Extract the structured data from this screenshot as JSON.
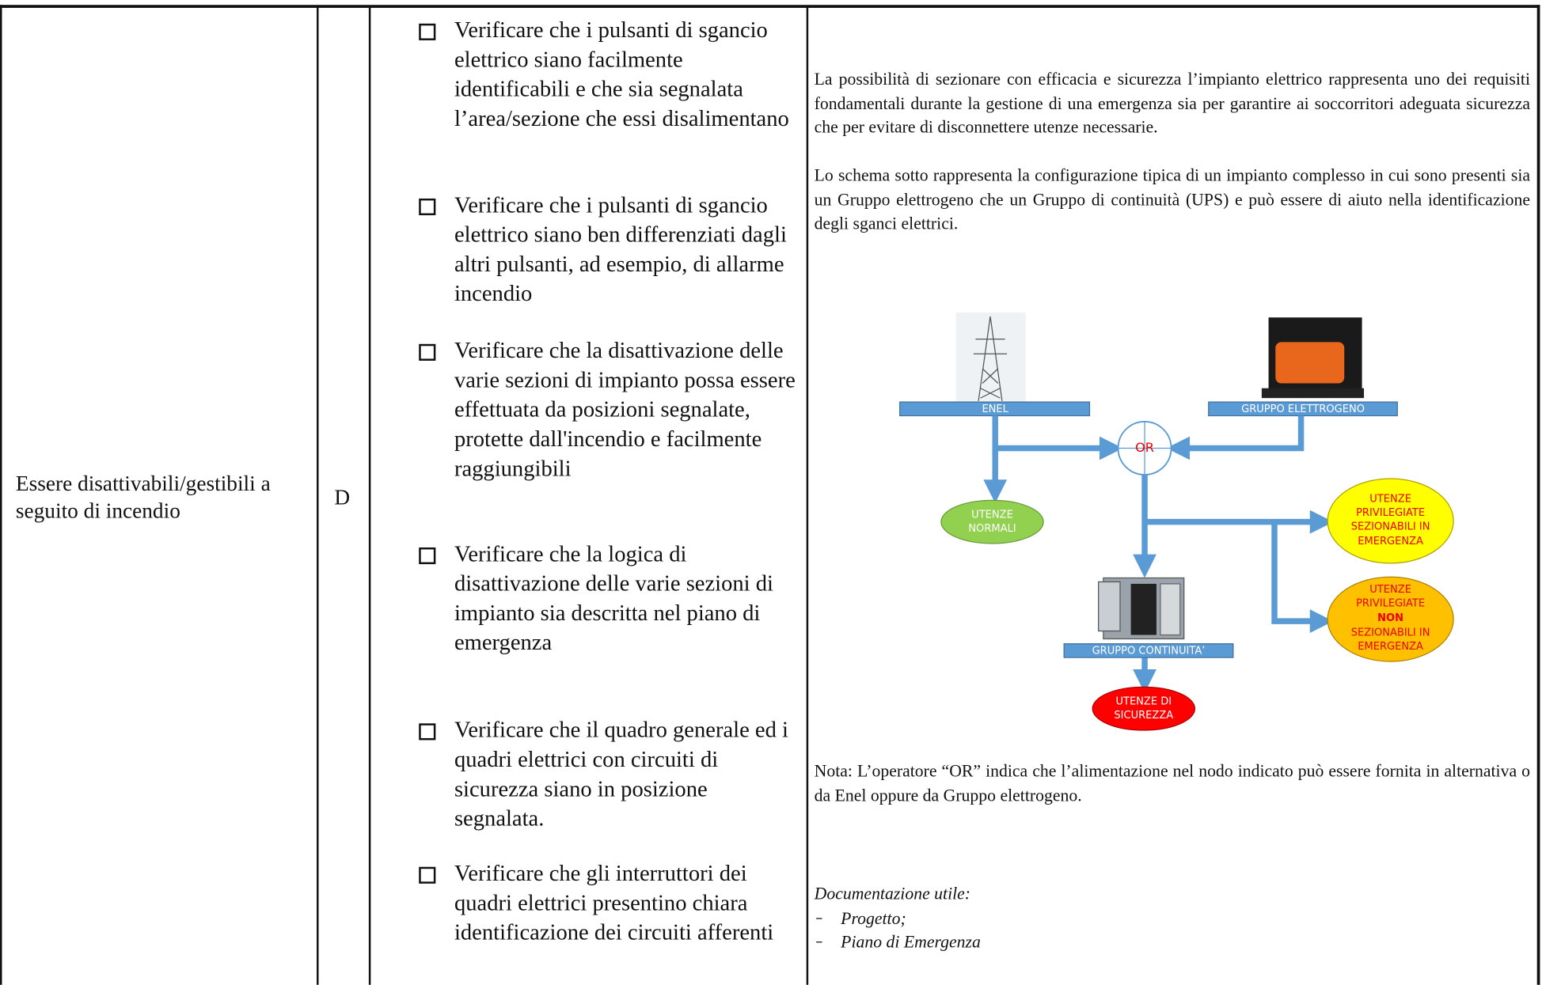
{
  "row": {
    "requirement": "Essere disattivabili/gestibili a seguito di incendio",
    "code": "D",
    "checks": [
      "Verificare che i pulsanti di sgancio elettrico siano facilmente identificabili e che sia segnalata l’area/sezione che essi disalimentano",
      "Verificare che i pulsanti di sgancio elettrico siano ben differenziati dagli altri pulsanti, ad esempio, di allarme incendio",
      "Verificare che la disattivazione delle varie sezioni di impianto possa essere effettuata da posizioni segnalate, protette dall'incendio e facilmente raggiungibili",
      "Verificare che la logica di disattivazione delle varie sezioni di impianto sia descritta nel piano di emergenza",
      "Verificare che il quadro generale ed i quadri elettrici con circuiti di sicurezza siano in posizione segnalata.",
      "Verificare che gli interruttori dei quadri elettrici presentino chiara identificazione dei circuiti afferenti"
    ],
    "notes": {
      "paragraphs": [
        "La possibilità di sezionare con efficacia e sicurezza l’impianto elettrico rappresenta uno dei requisiti fondamentali durante la gestione di una emergenza sia per garantire ai soccorritori adeguata sicurezza che per evitare di disconnettere utenze necessarie.",
        "Lo schema sotto rappresenta la configurazione tipica di un impianto complesso in cui sono presenti sia un Gruppo elettrogeno che un Gruppo di continuità (UPS) e può essere di aiuto nella identificazione degli sganci elettrici."
      ],
      "note": "Nota: L’operatore “OR” indica che l’alimentazione nel nodo indicato può essere fornita in alternativa o da Enel oppure da Gruppo elettrogeno.",
      "documentation_title": "Documentazione utile:",
      "documentation": [
        "Progetto;",
        "Piano di Emergenza"
      ]
    },
    "diagram": {
      "enel": "ENEL",
      "generator": "GRUPPO ELETTROGENO",
      "or": "OR",
      "normal": [
        "UTENZE",
        "NORMALI"
      ],
      "sectionable": [
        "UTENZE",
        "PRIVILEGIATE",
        "SEZIONABILI IN",
        "EMERGENZA"
      ],
      "non_sectionable": [
        "UTENZE",
        "PRIVILEGIATE",
        "NON",
        "SEZIONABILI IN",
        "EMERGENZA"
      ],
      "ups": "GRUPPO CONTINUITA’",
      "safety": [
        "UTENZE DI",
        "SICUREZZA"
      ]
    }
  }
}
